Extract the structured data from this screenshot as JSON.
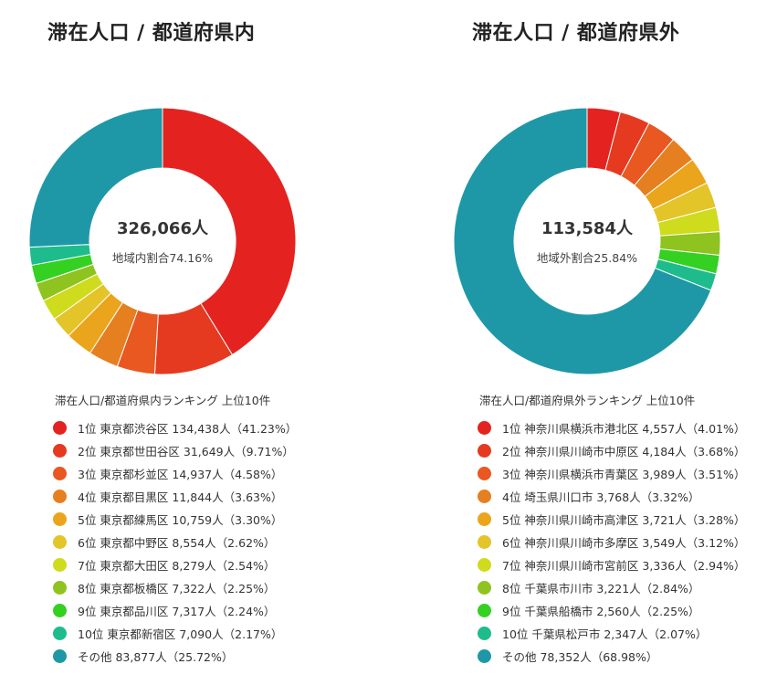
{
  "chart_data": [
    {
      "type": "pie",
      "variant": "donut",
      "title": "滞在人口 / 都道府県内",
      "center": {
        "total": "326,066人",
        "share_label": "地域内割合74.16%"
      },
      "legend_title": "滞在人口/都道府県内ランキング 上位10件",
      "legend_position": "bottom",
      "categories": [
        "1位 東京都渋谷区",
        "2位 東京都世田谷区",
        "3位 東京都杉並区",
        "4位 東京都目黒区",
        "5位 東京都練馬区",
        "6位 東京都中野区",
        "7位 東京都大田区",
        "8位 東京都板橋区",
        "9位 東京都品川区",
        "10位 東京都新宿区",
        "その他"
      ],
      "values": [
        134438,
        31649,
        14937,
        11844,
        10759,
        8554,
        8279,
        7322,
        7317,
        7090,
        83877
      ],
      "labels": [
        "1位 東京都渋谷区 134,438人（41.23%）",
        "2位 東京都世田谷区 31,649人（9.71%）",
        "3位 東京都杉並区 14,937人（4.58%）",
        "4位 東京都目黒区 11,844人（3.63%）",
        "5位 東京都練馬区 10,759人（3.30%）",
        "6位 東京都中野区 8,554人（2.62%）",
        "7位 東京都大田区 8,279人（2.54%）",
        "8位 東京都板橋区 7,322人（2.25%）",
        "9位 東京都品川区 7,317人（2.24%）",
        "10位 東京都新宿区 7,090人（2.17%）",
        "その他 83,877人（25.72%）"
      ]
    },
    {
      "type": "pie",
      "variant": "donut",
      "title": "滞在人口 / 都道府県外",
      "center": {
        "total": "113,584人",
        "share_label": "地域外割合25.84%"
      },
      "legend_title": "滞在人口/都道府県外ランキング 上位10件",
      "legend_position": "bottom",
      "categories": [
        "1位 神奈川県横浜市港北区",
        "2位 神奈川県川崎市中原区",
        "3位 神奈川県横浜市青葉区",
        "4位 埼玉県川口市",
        "5位 神奈川県川崎市高津区",
        "6位 神奈川県川崎市多摩区",
        "7位 神奈川県川崎市宮前区",
        "8位 千葉県市川市",
        "9位 千葉県船橋市",
        "10位 千葉県松戸市",
        "その他"
      ],
      "values": [
        4557,
        4184,
        3989,
        3768,
        3721,
        3549,
        3336,
        3221,
        2560,
        2347,
        78352
      ],
      "labels": [
        "1位 神奈川県横浜市港北区 4,557人（4.01%）",
        "2位 神奈川県川崎市中原区 4,184人（3.68%）",
        "3位 神奈川県横浜市青葉区 3,989人（3.51%）",
        "4位 埼玉県川口市 3,768人（3.32%）",
        "5位 神奈川県川崎市高津区 3,721人（3.28%）",
        "6位 神奈川県川崎市多摩区 3,549人（3.12%）",
        "7位 神奈川県川崎市宮前区 3,336人（2.94%）",
        "8位 千葉県市川市 3,221人（2.84%）",
        "9位 千葉県船橋市 2,560人（2.25%）",
        "10位 千葉県松戸市 2,347人（2.07%）",
        "その他 78,352人（68.98%）"
      ]
    }
  ],
  "colors": [
    "#e42320",
    "#e53a20",
    "#e85820",
    "#e57f20",
    "#eaa51c",
    "#e3c52a",
    "#cfdb1d",
    "#8fc31f",
    "#34d022",
    "#1ebc8c",
    "#1e98a6"
  ]
}
